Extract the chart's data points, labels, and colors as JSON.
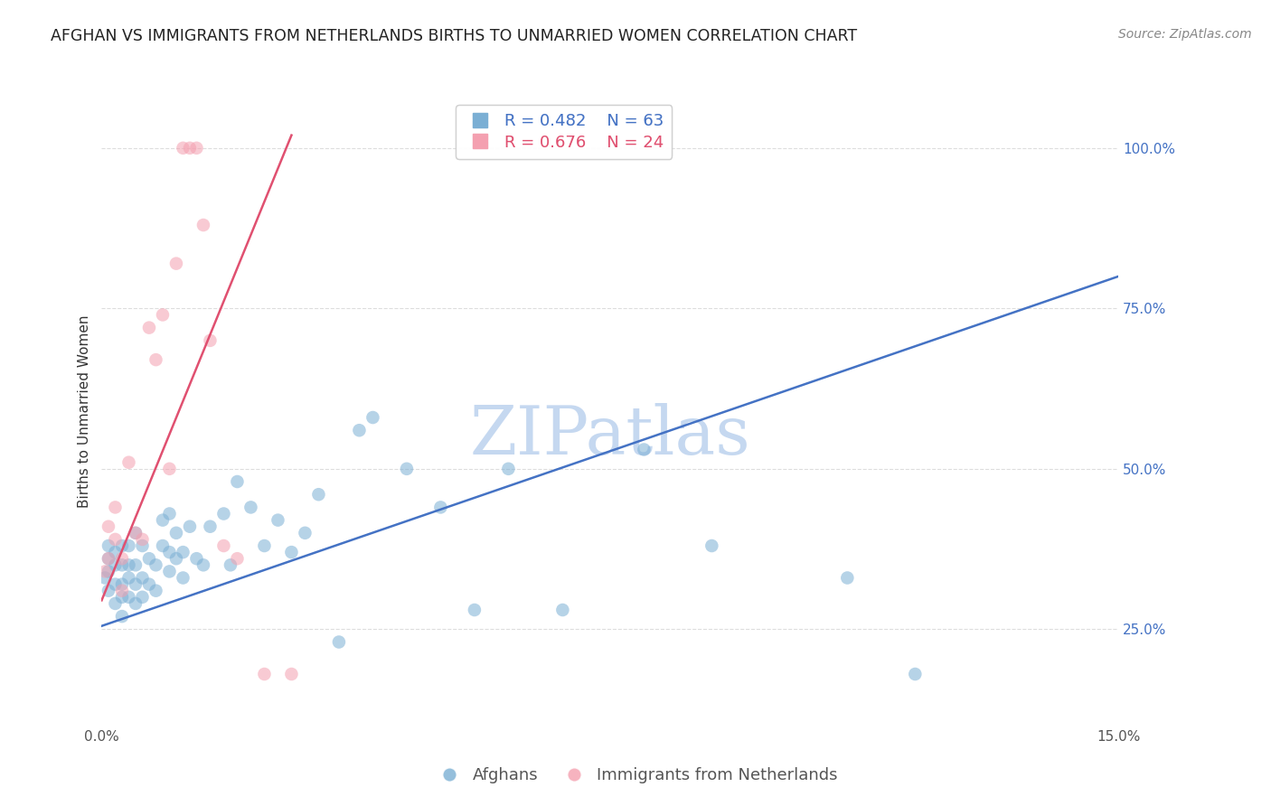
{
  "title": "AFGHAN VS IMMIGRANTS FROM NETHERLANDS BIRTHS TO UNMARRIED WOMEN CORRELATION CHART",
  "source": "Source: ZipAtlas.com",
  "ylabel": "Births to Unmarried Women",
  "xlim": [
    0.0,
    0.15
  ],
  "ylim": [
    0.1,
    1.08
  ],
  "right_yticks": [
    0.25,
    0.5,
    0.75,
    1.0
  ],
  "right_yticklabels": [
    "25.0%",
    "50.0%",
    "75.0%",
    "100.0%"
  ],
  "xticks": [
    0.0,
    0.03,
    0.06,
    0.09,
    0.12,
    0.15
  ],
  "xticklabels": [
    "0.0%",
    "",
    "",
    "",
    "",
    "15.0%"
  ],
  "blue_R": 0.482,
  "blue_N": 63,
  "pink_R": 0.676,
  "pink_N": 24,
  "blue_color": "#7bafd4",
  "pink_color": "#f4a0b0",
  "blue_line_color": "#4472c4",
  "pink_line_color": "#e05070",
  "watermark": "ZIPatlas",
  "watermark_color": "#c5d8f0",
  "legend_label_blue": "Afghans",
  "legend_label_pink": "Immigrants from Netherlands",
  "blue_scatter_x": [
    0.0005,
    0.001,
    0.001,
    0.001,
    0.001,
    0.002,
    0.002,
    0.002,
    0.002,
    0.003,
    0.003,
    0.003,
    0.003,
    0.003,
    0.004,
    0.004,
    0.004,
    0.004,
    0.005,
    0.005,
    0.005,
    0.005,
    0.006,
    0.006,
    0.006,
    0.007,
    0.007,
    0.008,
    0.008,
    0.009,
    0.009,
    0.01,
    0.01,
    0.01,
    0.011,
    0.011,
    0.012,
    0.012,
    0.013,
    0.014,
    0.015,
    0.016,
    0.018,
    0.019,
    0.02,
    0.022,
    0.024,
    0.026,
    0.028,
    0.03,
    0.032,
    0.035,
    0.038,
    0.04,
    0.045,
    0.05,
    0.055,
    0.06,
    0.068,
    0.08,
    0.09,
    0.11,
    0.12
  ],
  "blue_scatter_y": [
    0.33,
    0.31,
    0.34,
    0.36,
    0.38,
    0.29,
    0.32,
    0.35,
    0.37,
    0.27,
    0.3,
    0.32,
    0.35,
    0.38,
    0.3,
    0.33,
    0.35,
    0.38,
    0.29,
    0.32,
    0.35,
    0.4,
    0.3,
    0.33,
    0.38,
    0.32,
    0.36,
    0.31,
    0.35,
    0.38,
    0.42,
    0.34,
    0.37,
    0.43,
    0.36,
    0.4,
    0.33,
    0.37,
    0.41,
    0.36,
    0.35,
    0.41,
    0.43,
    0.35,
    0.48,
    0.44,
    0.38,
    0.42,
    0.37,
    0.4,
    0.46,
    0.23,
    0.56,
    0.58,
    0.5,
    0.44,
    0.28,
    0.5,
    0.28,
    0.53,
    0.38,
    0.33,
    0.18
  ],
  "pink_scatter_x": [
    0.0005,
    0.001,
    0.001,
    0.002,
    0.002,
    0.003,
    0.003,
    0.004,
    0.005,
    0.006,
    0.007,
    0.008,
    0.009,
    0.01,
    0.011,
    0.012,
    0.013,
    0.014,
    0.015,
    0.016,
    0.018,
    0.02,
    0.024,
    0.028
  ],
  "pink_scatter_y": [
    0.34,
    0.36,
    0.41,
    0.39,
    0.44,
    0.31,
    0.36,
    0.51,
    0.4,
    0.39,
    0.72,
    0.67,
    0.74,
    0.5,
    0.82,
    1.0,
    1.0,
    1.0,
    0.88,
    0.7,
    0.38,
    0.36,
    0.18,
    0.18
  ],
  "blue_trendline_x": [
    0.0,
    0.15
  ],
  "blue_trendline_y": [
    0.255,
    0.8
  ],
  "pink_trendline_x": [
    0.0,
    0.028
  ],
  "pink_trendline_y": [
    0.295,
    1.02
  ],
  "grid_color": "#dddddd",
  "background_color": "#ffffff",
  "title_fontsize": 12.5,
  "axis_label_fontsize": 11,
  "tick_fontsize": 11,
  "legend_fontsize": 13,
  "source_fontsize": 10
}
